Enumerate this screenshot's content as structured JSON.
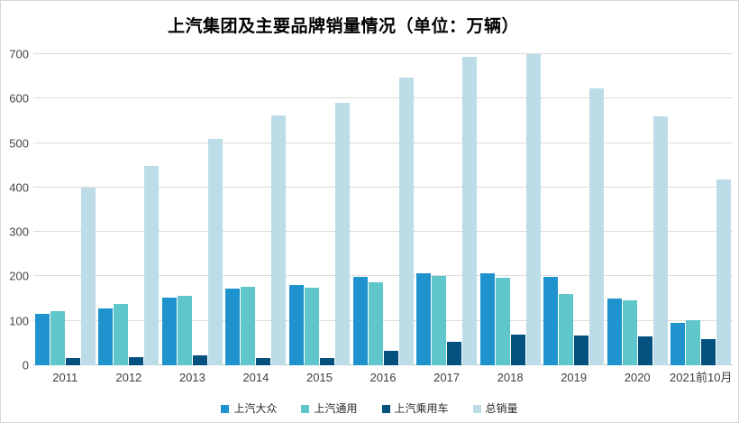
{
  "title": "上汽集团及主要品牌销量情况（单位：万辆）",
  "chart_data": {
    "type": "bar",
    "title": "上汽集团及主要品牌销量情况（单位：万辆）",
    "xlabel": "",
    "ylabel": "",
    "ylim": [
      0,
      700
    ],
    "yticks": [
      0,
      100,
      200,
      300,
      400,
      500,
      600,
      700
    ],
    "grid": true,
    "legend_position": "bottom",
    "categories": [
      "2011",
      "2012",
      "2013",
      "2014",
      "2015",
      "2016",
      "2017",
      "2018",
      "2019",
      "2020",
      "2021前10月"
    ],
    "series": [
      {
        "name": "上汽大众",
        "color": "#1e93ce",
        "values": [
          116,
          128,
          152,
          172,
          180,
          199,
          206,
          206,
          199,
          150,
          95
        ]
      },
      {
        "name": "上汽通用",
        "color": "#5fc6cc",
        "values": [
          122,
          139,
          157,
          176,
          175,
          187,
          200,
          197,
          160,
          146,
          101
        ]
      },
      {
        "name": "上汽乘用车",
        "color": "#03517f",
        "values": [
          16,
          19,
          22,
          17,
          16,
          32,
          52,
          70,
          67,
          64,
          58
        ]
      },
      {
        "name": "总销量",
        "color": "#bcdce8",
        "values": [
          400,
          449,
          510,
          562,
          590,
          648,
          693,
          700,
          623,
          560,
          419
        ]
      }
    ]
  },
  "colors": {
    "background": "#ffffff",
    "border": "#d6d6d6",
    "gridline": "#dcdcdc",
    "axis_line": "#c3c3c3",
    "tick_text": "#454545",
    "title_text": "#000000"
  }
}
